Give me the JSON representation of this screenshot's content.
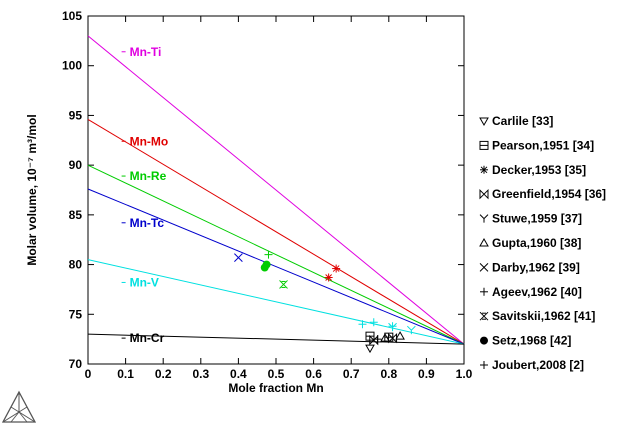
{
  "chart_data": {
    "type": "line",
    "title": "",
    "xlabel": "Mole fraction Mn",
    "ylabel": "Molar volume, 10⁻⁷ m³/mol",
    "xlim": [
      0,
      1
    ],
    "ylim": [
      70,
      105
    ],
    "x_ticks": [
      "0",
      "0.1",
      "0.2",
      "0.3",
      "0.4",
      "0.5",
      "0.6",
      "0.7",
      "0.8",
      "0.9",
      "1.0"
    ],
    "y_ticks": [
      "70",
      "75",
      "80",
      "85",
      "90",
      "95",
      "100",
      "105"
    ],
    "grid": false,
    "legend_position": "right",
    "series": [
      {
        "name": "Mn-Ti",
        "color": "#e000e0",
        "x": [
          0,
          1
        ],
        "y": [
          103.0,
          72.0
        ],
        "label_at": [
          0.1,
          101
        ]
      },
      {
        "name": "Mn-Mo",
        "color": "#e00000",
        "x": [
          0,
          1
        ],
        "y": [
          94.6,
          72.0
        ],
        "label_at": [
          0.1,
          92
        ]
      },
      {
        "name": "Mn-Re",
        "color": "#00cc00",
        "x": [
          0,
          1
        ],
        "y": [
          90.0,
          72.0
        ],
        "label_at": [
          0.1,
          88.5
        ]
      },
      {
        "name": "Mn-Tc",
        "color": "#0000cc",
        "x": [
          0,
          1
        ],
        "y": [
          87.6,
          72.0
        ],
        "label_at": [
          0.1,
          83.8
        ]
      },
      {
        "name": "Mn-V",
        "color": "#00e0e0",
        "x": [
          0,
          1
        ],
        "y": [
          80.5,
          72.0
        ],
        "label_at": [
          0.1,
          77.8
        ]
      },
      {
        "name": "Mn-Cr",
        "color": "#000000",
        "x": [
          0,
          1
        ],
        "y": [
          73.0,
          72.0
        ],
        "label_at": [
          0.1,
          72.2
        ]
      }
    ],
    "experimental": [
      {
        "name": "Carlile [33]",
        "marker": "tri-down",
        "color": "#000000",
        "points": [
          [
            0.75,
            71.6
          ]
        ]
      },
      {
        "name": "Pearson,1951 [34]",
        "marker": "square-dot",
        "color": "#000000",
        "points": [
          [
            0.75,
            72.8
          ],
          [
            0.8,
            72.7
          ]
        ]
      },
      {
        "name": "Decker,1953 [35]",
        "marker": "asterisk",
        "color": "#e00000",
        "points": [
          [
            0.64,
            78.7
          ],
          [
            0.66,
            79.6
          ]
        ]
      },
      {
        "name": "Greenfield,1954 [36]",
        "marker": "bowtie",
        "color": "#000000",
        "points": [
          [
            0.76,
            72.4
          ],
          [
            0.81,
            72.6
          ]
        ]
      },
      {
        "name": "Stuwe,1959 [37]",
        "marker": "y",
        "color": "#00e0e0",
        "points": [
          [
            0.81,
            73.7
          ],
          [
            0.86,
            73.4
          ]
        ]
      },
      {
        "name": "Gupta,1960 [38]",
        "marker": "tri-up",
        "color": "#000000",
        "points": [
          [
            0.79,
            72.6
          ],
          [
            0.83,
            72.8
          ]
        ]
      },
      {
        "name": "Darby,1962 [39]",
        "marker": "x",
        "color": "#0000cc",
        "points": [
          [
            0.4,
            80.7
          ]
        ]
      },
      {
        "name": "Ageev,1962 [40]",
        "marker": "plus",
        "color": "#000000",
        "points": [
          [
            0.77,
            72.5
          ]
        ]
      },
      {
        "name": "Savitskii,1962 [41]",
        "marker": "x-hash",
        "color": "#00cc00",
        "points": [
          [
            0.52,
            78.0
          ]
        ]
      },
      {
        "name": "Setz,1968 [42]",
        "marker": "dot",
        "color": "#00cc00",
        "points": [
          [
            0.47,
            79.7
          ],
          [
            0.475,
            80.0
          ]
        ]
      },
      {
        "name": "Joubert,2008 [2]",
        "marker": "plus",
        "color": "#00cc00",
        "points": [
          [
            0.48,
            81.0
          ]
        ]
      },
      {
        "name": "Joubert,2008 [2]",
        "marker": "plus",
        "color": "#00e0e0",
        "points": [
          [
            0.73,
            74.0
          ],
          [
            0.76,
            74.2
          ],
          [
            0.81,
            73.8
          ]
        ]
      }
    ]
  }
}
